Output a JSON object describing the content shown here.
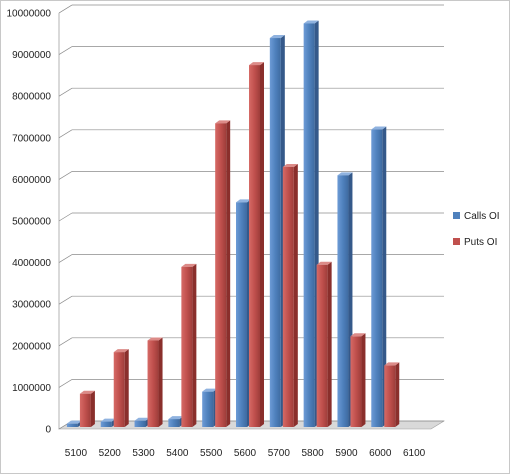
{
  "chart_data": {
    "type": "bar",
    "categories": [
      "5100",
      "5200",
      "5300",
      "5400",
      "5500",
      "5600",
      "5700",
      "5800",
      "5900",
      "6000",
      "6100"
    ],
    "series": [
      {
        "name": "Calls OI",
        "values": [
          80000,
          130000,
          150000,
          190000,
          850000,
          5400000,
          9350000,
          9700000,
          6050000,
          7150000,
          0
        ]
      },
      {
        "name": "Puts OI",
        "values": [
          800000,
          1800000,
          2080000,
          3850000,
          7300000,
          8700000,
          6250000,
          3900000,
          2180000,
          1480000,
          0
        ]
      }
    ],
    "yticks": [
      "0",
      "1000000",
      "2000000",
      "3000000",
      "4000000",
      "5000000",
      "6000000",
      "7000000",
      "8000000",
      "9000000",
      "10000000"
    ],
    "ylim": [
      0,
      10000000
    ],
    "grid": true,
    "legend": "right",
    "colors": {
      "Calls OI": "#4f81bd",
      "Puts OI": "#c0504d"
    }
  }
}
